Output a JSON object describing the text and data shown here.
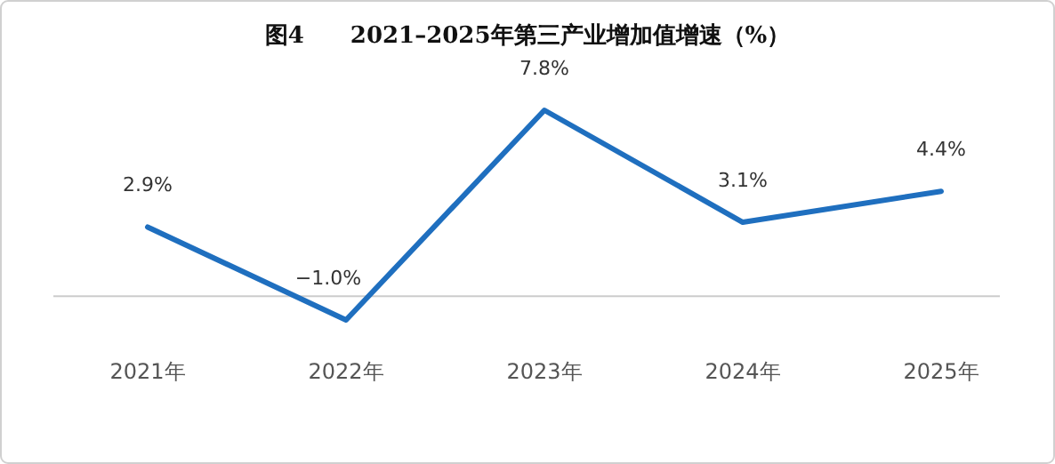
{
  "chart_data": {
    "type": "line",
    "title": "图4　　2021–2025年第三产业增加值增速（%）",
    "categories": [
      "2021年",
      "2022年",
      "2023年",
      "2024年",
      "2025年"
    ],
    "series": [
      {
        "color": "#1f6fbf",
        "values": [
          2.9,
          -1.0,
          7.8,
          3.1,
          4.4
        ],
        "value_labels": [
          "2.9%",
          "−1.0%",
          "7.8%",
          "3.1%",
          "4.4%"
        ]
      }
    ],
    "marker": "none",
    "line_style": "solid"
  }
}
